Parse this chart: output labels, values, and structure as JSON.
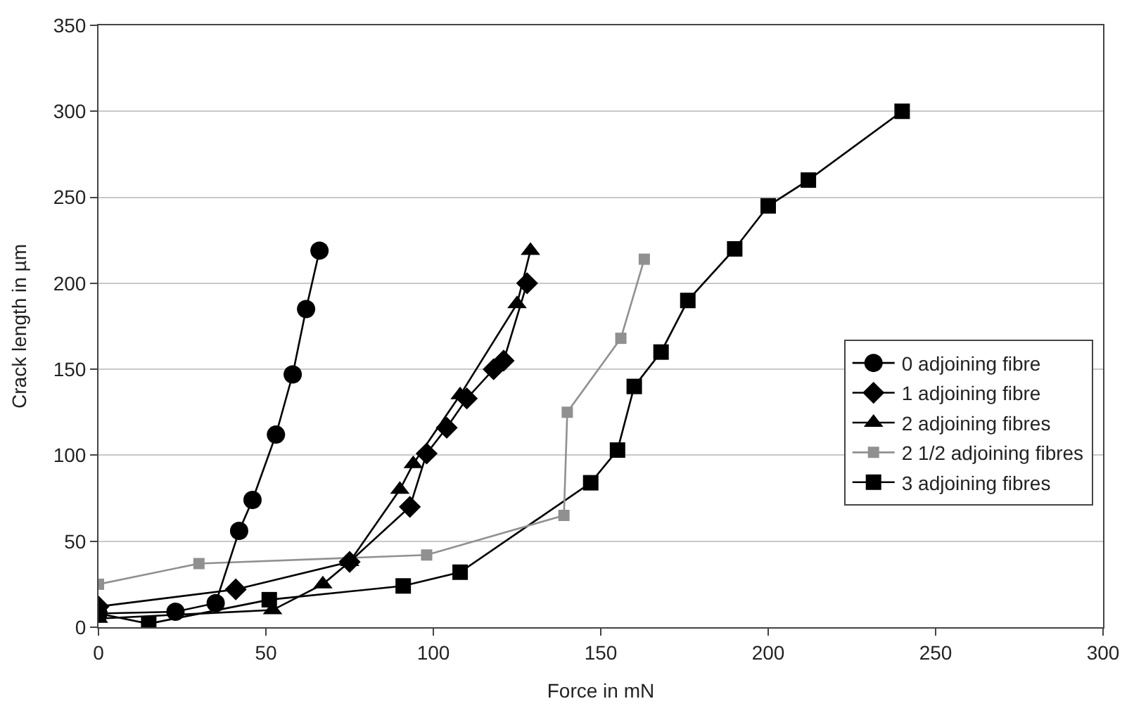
{
  "chart_data": {
    "type": "line",
    "xlabel": "Force in mN",
    "ylabel": "Crack length in µm",
    "xlim": [
      0,
      300
    ],
    "ylim": [
      0,
      350
    ],
    "xticks": [
      0,
      50,
      100,
      150,
      200,
      250,
      300
    ],
    "yticks": [
      0,
      50,
      100,
      150,
      200,
      250,
      300,
      350
    ],
    "grid": "y",
    "legend": "right",
    "line_style": "solid",
    "series": [
      {
        "name": "0 adjoining fibre",
        "color": "#000000",
        "marker": "circle",
        "x": [
          0,
          23,
          35,
          42,
          46,
          53,
          58,
          62,
          66
        ],
        "values": [
          8,
          9,
          14,
          56,
          74,
          112,
          147,
          185,
          219
        ]
      },
      {
        "name": "1 adjoining fibre",
        "color": "#000000",
        "marker": "diamond",
        "x": [
          0,
          41,
          75,
          93,
          98,
          104,
          110,
          118,
          121,
          128
        ],
        "values": [
          12,
          22,
          38,
          70,
          101,
          116,
          133,
          150,
          155,
          200
        ]
      },
      {
        "name": "2 adjoining fibres",
        "color": "#000000",
        "marker": "triangle",
        "x": [
          0,
          52,
          67,
          75,
          90,
          94,
          108,
          125,
          129
        ],
        "values": [
          5,
          10,
          25,
          38,
          80,
          95,
          135,
          188,
          219
        ]
      },
      {
        "name": "2 1/2 adjoining fibres",
        "color": "#909090",
        "marker": "square",
        "x": [
          0,
          30,
          98,
          139,
          140,
          156,
          163
        ],
        "values": [
          25,
          37,
          42,
          65,
          125,
          168,
          214
        ]
      },
      {
        "name": "3 adjoining fibres",
        "color": "#000000",
        "marker": "square",
        "x": [
          0,
          15,
          51,
          91,
          108,
          147,
          155,
          160,
          168,
          176,
          190,
          200,
          212,
          240
        ],
        "values": [
          8,
          2,
          16,
          24,
          32,
          84,
          103,
          140,
          160,
          190,
          220,
          245,
          260,
          300
        ]
      }
    ]
  }
}
